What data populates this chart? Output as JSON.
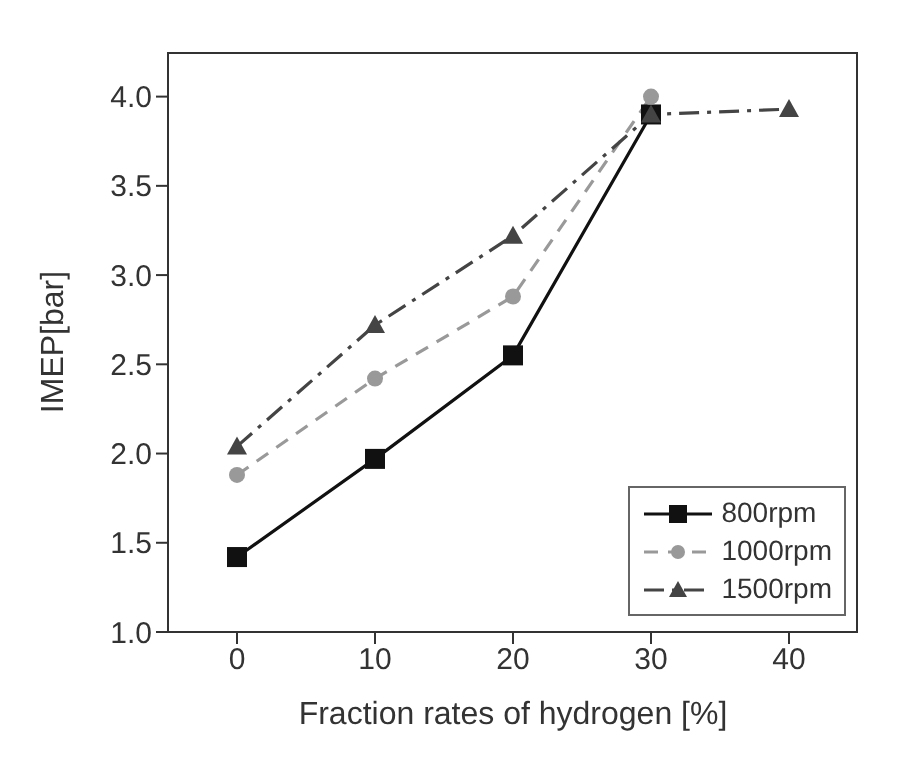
{
  "chart_data": {
    "type": "line",
    "xlabel": "Fraction rates of hydrogen [%]",
    "ylabel": "IMEP[bar]",
    "x": [
      0,
      10,
      20,
      30,
      40
    ],
    "xlim": [
      -5,
      45
    ],
    "xticks": [
      0,
      10,
      20,
      30,
      40
    ],
    "ylim": [
      1.0,
      4.25
    ],
    "yticks": [
      {
        "value": 1.0,
        "label": "1.0"
      },
      {
        "value": 1.5,
        "label": "1.5"
      },
      {
        "value": 2.0,
        "label": "2.0"
      },
      {
        "value": 2.5,
        "label": "2.5"
      },
      {
        "value": 3.0,
        "label": "3.0"
      },
      {
        "value": 3.5,
        "label": "3.5"
      },
      {
        "value": 4.0,
        "label": "4.0"
      }
    ],
    "grid": false,
    "legend": "bottom right",
    "series": [
      {
        "name": "800rpm",
        "color": "#111111",
        "marker": "square",
        "line_style": "solid",
        "values": [
          1.42,
          1.97,
          2.55,
          3.9,
          null
        ]
      },
      {
        "name": "1000rpm",
        "color": "#999999",
        "marker": "circle",
        "line_style": "dashed",
        "values": [
          1.88,
          2.42,
          2.88,
          4.0,
          null
        ]
      },
      {
        "name": "1500rpm",
        "color": "#444444",
        "marker": "triangle",
        "line_style": "dashdot",
        "values": [
          2.04,
          2.72,
          3.22,
          3.9,
          3.93
        ]
      }
    ]
  }
}
